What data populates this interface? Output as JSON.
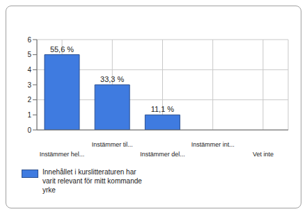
{
  "chart_data": {
    "type": "bar",
    "categories": [
      "Instämmer hel...",
      "Instämmer til...",
      "Instämmer del...",
      "Instämmer int...",
      "Vet inte"
    ],
    "series": [
      {
        "name": "Innehållet i kurslitteraturen har varit relevant för mitt kommande yrke",
        "color": "#3f7be0",
        "values": [
          5,
          3,
          1,
          0,
          0
        ]
      }
    ],
    "annotations": [
      "55,6 %",
      "33,3 %",
      "11,1 %",
      null,
      null
    ],
    "ylim": [
      0,
      6
    ],
    "yticks": [
      0,
      1,
      2,
      3,
      4,
      5,
      6
    ],
    "grid": true,
    "legend": "bottom"
  }
}
